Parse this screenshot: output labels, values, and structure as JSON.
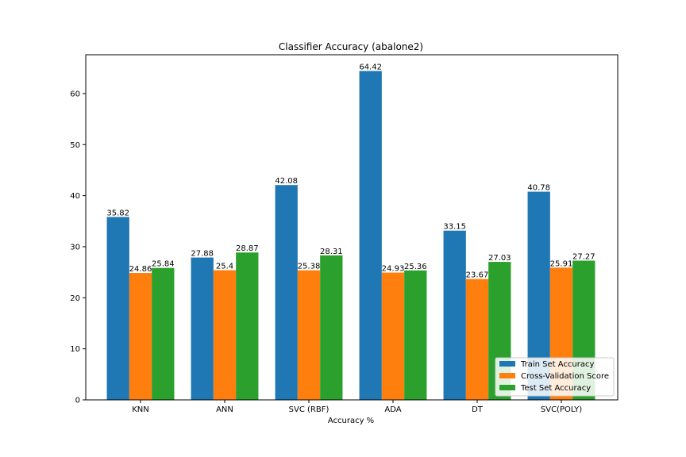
{
  "chart_data": {
    "type": "bar",
    "title": "Classifier Accuracy (abalone2)",
    "xlabel": "Accuracy %",
    "ylabel": "",
    "ylim": [
      0,
      67.6
    ],
    "yticks": [
      0,
      10,
      20,
      30,
      40,
      50,
      60
    ],
    "categories": [
      "KNN",
      "ANN",
      "SVC (RBF)",
      "ADA",
      "DT",
      "SVC(POLY)"
    ],
    "series": [
      {
        "name": "Train Set  Accuracy",
        "color": "#1f77b4",
        "values": [
          35.82,
          27.88,
          42.08,
          64.42,
          33.15,
          40.78
        ],
        "labels": [
          "35.82",
          "27.88",
          "42.08",
          "64.42",
          "33.15",
          "40.78"
        ]
      },
      {
        "name": "Cross-Validation Score",
        "color": "#ff7f0e",
        "values": [
          24.86,
          25.4,
          25.38,
          24.93,
          23.67,
          25.91
        ],
        "labels": [
          "24.86",
          "25.4",
          "25.38",
          "24.93",
          "23.67",
          "25.91"
        ]
      },
      {
        "name": "Test Set Accuracy",
        "color": "#2ca02c",
        "values": [
          25.84,
          28.87,
          28.31,
          25.36,
          27.03,
          27.27
        ],
        "labels": [
          "25.84",
          "28.87",
          "28.31",
          "25.36",
          "27.03",
          "27.27"
        ]
      }
    ],
    "legend_position": "lower-right",
    "grid": false
  }
}
